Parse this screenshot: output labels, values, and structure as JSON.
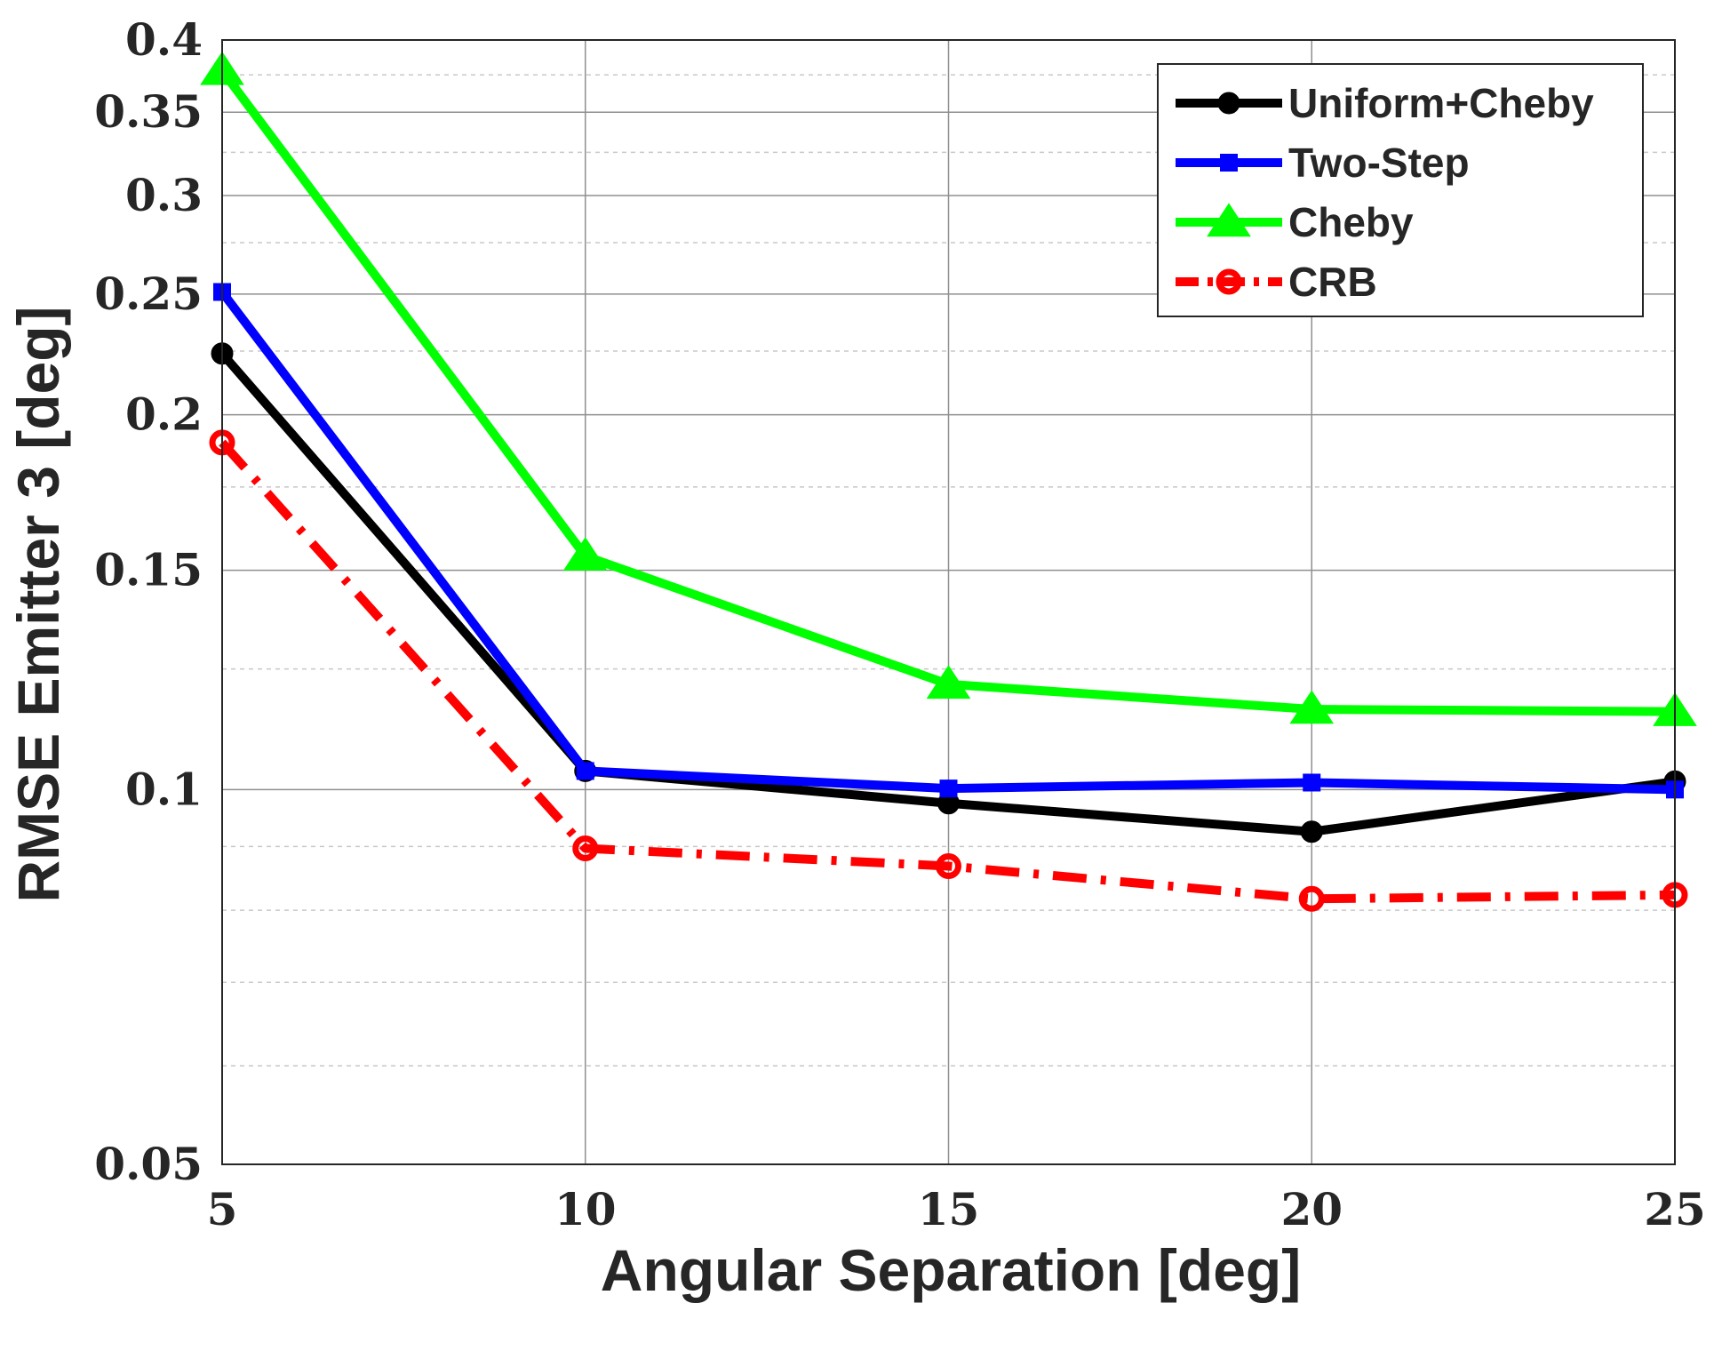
{
  "chart_data": {
    "type": "line",
    "title": "",
    "xlabel": "Angular Separation [deg]",
    "ylabel": "RMSE Emitter 3 [deg]",
    "x": [
      5,
      10,
      15,
      20,
      25
    ],
    "xlim": [
      5,
      25
    ],
    "ylim": [
      0.05,
      0.4
    ],
    "yscale": "log",
    "grid": true,
    "minor_grid": true,
    "xticks": [
      5,
      10,
      15,
      20,
      25
    ],
    "xtick_labels": [
      "5",
      "10",
      "15",
      "20",
      "25"
    ],
    "yticks": [
      0.05,
      0.1,
      0.15,
      0.2,
      0.25,
      0.3,
      0.35,
      0.4
    ],
    "ytick_labels": [
      "0.05",
      "0.1",
      "0.15",
      "0.2",
      "0.25",
      "0.3",
      "0.35",
      "0.4"
    ],
    "legend_position": "top-right",
    "series": [
      {
        "name": "Uniform+Cheby",
        "values": [
          0.224,
          0.1035,
          0.0975,
          0.0925,
          0.1015
        ],
        "color": "#000000",
        "marker": "circle-filled",
        "dashed": false
      },
      {
        "name": "Two-Step",
        "values": [
          0.251,
          0.1035,
          0.1002,
          0.1013,
          0.1
        ],
        "color": "#0000ff",
        "marker": "square-filled",
        "dashed": false
      },
      {
        "name": "Cheby",
        "values": [
          0.378,
          0.154,
          0.1215,
          0.116,
          0.1155
        ],
        "color": "#00ff00",
        "marker": "triangle-filled",
        "dashed": false
      },
      {
        "name": "CRB",
        "values": [
          0.19,
          0.0897,
          0.0868,
          0.0817,
          0.0823
        ],
        "color": "#ff0000",
        "marker": "circle-open",
        "dashed": true
      }
    ]
  }
}
